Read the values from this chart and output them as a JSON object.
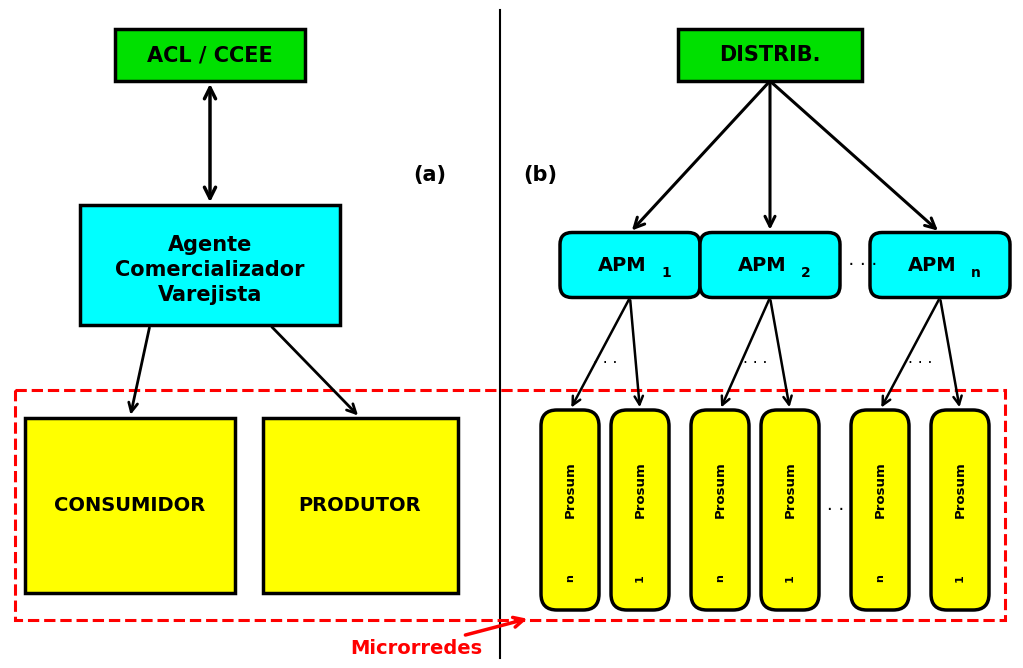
{
  "bg_color": "#ffffff",
  "green_color": "#00e000",
  "cyan_color": "#00ffff",
  "yellow_color": "#ffff00",
  "black_color": "#000000",
  "red_color": "#ff0000",
  "label_a": "(a)",
  "label_b": "(b)",
  "acl_text": "ACL / CCEE",
  "agente_line1": "Agente",
  "agente_line2": "Comercializador",
  "agente_line3": "Varejista",
  "consumidor_text": "CONSUMIDOR",
  "produtor_text": "PRODUTOR",
  "distrib_text": "DISTRIB.",
  "apm_base": "APM",
  "apm_subs": [
    "1",
    "2",
    "n"
  ],
  "prosum_base": "Prosum",
  "prosum_subs": [
    "n",
    "1"
  ],
  "microrredes_text": "Microrredes",
  "dots_text": "· · · ·",
  "dots3_text": "· · ·",
  "dots2_text": "· ·"
}
